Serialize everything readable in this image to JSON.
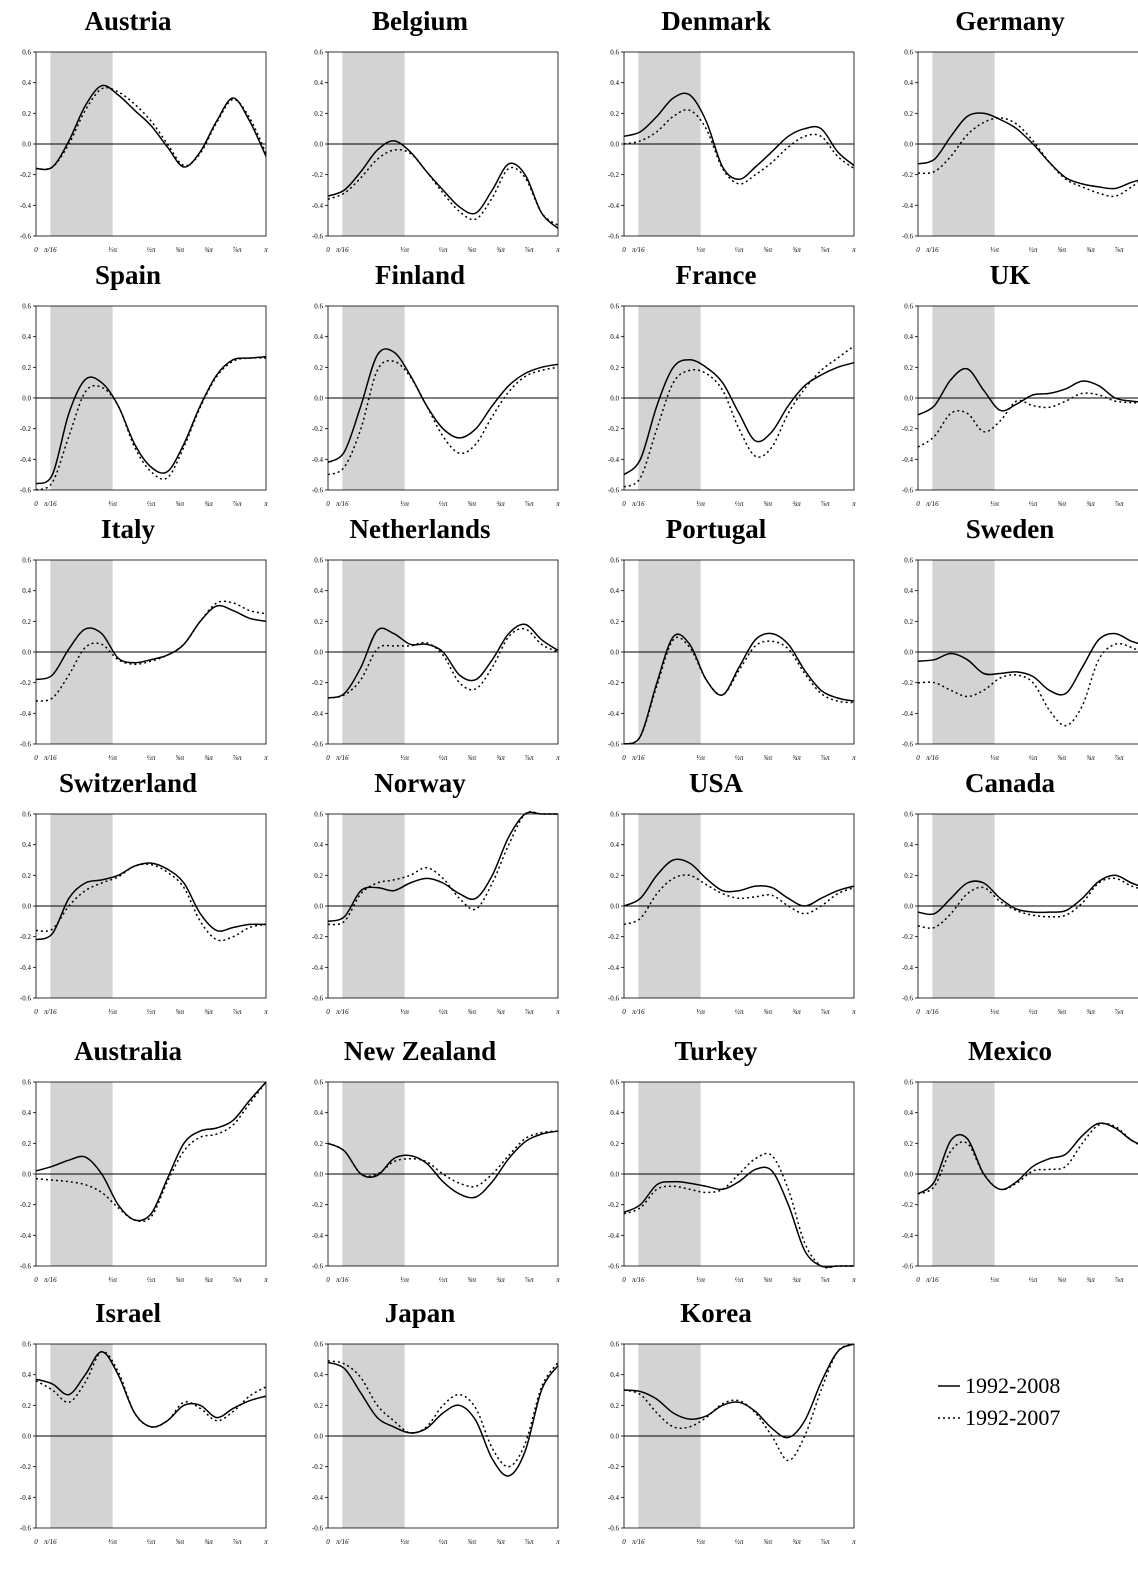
{
  "chart_data": {
    "type": "line",
    "ylim": [
      -0.6,
      0.6
    ],
    "yticks": [
      "0.6",
      "0.4",
      "0.2",
      "0.0",
      "-0.2",
      "-0.4",
      "-0.6"
    ],
    "x_tick_labels": [
      "0",
      "π/16",
      "⅓π",
      "½π",
      "⅝π",
      "¾π",
      "⅞π",
      "π"
    ],
    "series_style": {
      "1992-2008": "solid",
      "1992-2007": "dotted"
    },
    "legend": {
      "position": "bottom-right",
      "entries": [
        "1992-2008",
        "1992-2007"
      ]
    },
    "shaded_band": "π/16 to ⅓π",
    "panels": [
      {
        "title": "Austria",
        "s1": [
          -0.16,
          -0.15,
          0.02,
          0.25,
          0.38,
          0.32,
          0.22,
          0.12,
          -0.02,
          -0.15,
          -0.05,
          0.15,
          0.3,
          0.15,
          -0.08
        ],
        "s2": [
          -0.16,
          -0.15,
          0.0,
          0.22,
          0.36,
          0.34,
          0.26,
          0.15,
          0.0,
          -0.14,
          -0.06,
          0.14,
          0.29,
          0.17,
          -0.06
        ]
      },
      {
        "title": "Belgium",
        "s1": [
          -0.34,
          -0.3,
          -0.18,
          -0.04,
          0.02,
          -0.05,
          -0.18,
          -0.3,
          -0.41,
          -0.45,
          -0.3,
          -0.13,
          -0.2,
          -0.45,
          -0.55
        ],
        "s2": [
          -0.36,
          -0.32,
          -0.22,
          -0.1,
          -0.04,
          -0.06,
          -0.18,
          -0.32,
          -0.44,
          -0.49,
          -0.35,
          -0.16,
          -0.22,
          -0.45,
          -0.53
        ]
      },
      {
        "title": "Denmark",
        "s1": [
          0.05,
          0.08,
          0.18,
          0.3,
          0.32,
          0.15,
          -0.15,
          -0.23,
          -0.15,
          -0.05,
          0.05,
          0.1,
          0.1,
          -0.05,
          -0.14
        ],
        "s2": [
          0.0,
          0.02,
          0.08,
          0.18,
          0.22,
          0.1,
          -0.16,
          -0.26,
          -0.2,
          -0.12,
          -0.02,
          0.05,
          0.05,
          -0.08,
          -0.16
        ]
      },
      {
        "title": "Germany",
        "s1": [
          -0.13,
          -0.1,
          0.05,
          0.18,
          0.2,
          0.16,
          0.1,
          0.0,
          -0.12,
          -0.22,
          -0.26,
          -0.28,
          -0.29,
          -0.25,
          -0.22
        ],
        "s2": [
          -0.19,
          -0.18,
          -0.08,
          0.06,
          0.14,
          0.17,
          0.13,
          0.02,
          -0.12,
          -0.23,
          -0.28,
          -0.32,
          -0.34,
          -0.28,
          -0.2
        ]
      },
      {
        "title": "Spain",
        "s1": [
          -0.56,
          -0.5,
          -0.1,
          0.12,
          0.1,
          -0.05,
          -0.3,
          -0.45,
          -0.48,
          -0.3,
          -0.05,
          0.15,
          0.25,
          0.26,
          0.27
        ],
        "s2": [
          -0.62,
          -0.55,
          -0.25,
          0.04,
          0.07,
          -0.05,
          -0.32,
          -0.48,
          -0.52,
          -0.32,
          -0.06,
          0.14,
          0.24,
          0.26,
          0.26
        ]
      },
      {
        "title": "Finland",
        "s1": [
          -0.42,
          -0.35,
          -0.05,
          0.28,
          0.3,
          0.15,
          -0.05,
          -0.2,
          -0.26,
          -0.2,
          -0.05,
          0.08,
          0.16,
          0.2,
          0.22
        ],
        "s2": [
          -0.5,
          -0.45,
          -0.2,
          0.18,
          0.24,
          0.14,
          -0.05,
          -0.25,
          -0.36,
          -0.3,
          -0.12,
          0.04,
          0.14,
          0.18,
          0.2
        ]
      },
      {
        "title": "France",
        "s1": [
          -0.5,
          -0.4,
          -0.05,
          0.2,
          0.25,
          0.2,
          0.1,
          -0.1,
          -0.28,
          -0.22,
          -0.05,
          0.08,
          0.15,
          0.2,
          0.23
        ],
        "s2": [
          -0.58,
          -0.52,
          -0.2,
          0.1,
          0.18,
          0.16,
          0.05,
          -0.2,
          -0.38,
          -0.32,
          -0.1,
          0.06,
          0.18,
          0.26,
          0.34
        ]
      },
      {
        "title": "UK",
        "s1": [
          -0.11,
          -0.05,
          0.12,
          0.19,
          0.05,
          -0.08,
          -0.04,
          0.02,
          0.03,
          0.06,
          0.11,
          0.08,
          0.0,
          -0.02,
          -0.03
        ],
        "s2": [
          -0.32,
          -0.25,
          -0.1,
          -0.1,
          -0.22,
          -0.15,
          -0.02,
          -0.05,
          -0.06,
          -0.02,
          0.03,
          0.02,
          -0.02,
          -0.03,
          -0.03
        ]
      },
      {
        "title": "Italy",
        "s1": [
          -0.18,
          -0.15,
          0.02,
          0.15,
          0.12,
          -0.04,
          -0.07,
          -0.05,
          -0.02,
          0.05,
          0.2,
          0.3,
          0.27,
          0.22,
          0.2
        ],
        "s2": [
          -0.32,
          -0.3,
          -0.15,
          0.03,
          0.05,
          -0.05,
          -0.08,
          -0.06,
          -0.02,
          0.05,
          0.2,
          0.32,
          0.32,
          0.27,
          0.25
        ]
      },
      {
        "title": "Netherlands",
        "s1": [
          -0.3,
          -0.27,
          -0.1,
          0.14,
          0.12,
          0.05,
          0.05,
          0.0,
          -0.15,
          -0.18,
          -0.05,
          0.12,
          0.18,
          0.08,
          0.01
        ],
        "s2": [
          -0.3,
          -0.28,
          -0.18,
          0.02,
          0.04,
          0.04,
          0.06,
          -0.02,
          -0.2,
          -0.24,
          -0.1,
          0.1,
          0.15,
          0.05,
          0.0
        ]
      },
      {
        "title": "Portugal",
        "s1": [
          -0.65,
          -0.55,
          -0.2,
          0.1,
          0.05,
          -0.18,
          -0.28,
          -0.1,
          0.08,
          0.12,
          0.05,
          -0.12,
          -0.25,
          -0.3,
          -0.32
        ],
        "s2": [
          -0.65,
          -0.55,
          -0.22,
          0.08,
          0.03,
          -0.18,
          -0.28,
          -0.12,
          0.04,
          0.07,
          0.02,
          -0.14,
          -0.27,
          -0.32,
          -0.33
        ]
      },
      {
        "title": "Sweden",
        "s1": [
          -0.06,
          -0.05,
          -0.01,
          -0.05,
          -0.14,
          -0.14,
          -0.13,
          -0.16,
          -0.25,
          -0.27,
          -0.1,
          0.08,
          0.12,
          0.07,
          0.04
        ],
        "s2": [
          -0.2,
          -0.2,
          -0.25,
          -0.29,
          -0.25,
          -0.17,
          -0.15,
          -0.2,
          -0.38,
          -0.48,
          -0.35,
          -0.05,
          0.05,
          0.03,
          -0.03
        ]
      },
      {
        "title": "Switzerland",
        "s1": [
          -0.22,
          -0.18,
          0.05,
          0.15,
          0.17,
          0.2,
          0.26,
          0.28,
          0.24,
          0.15,
          -0.05,
          -0.16,
          -0.14,
          -0.12,
          -0.12
        ],
        "s2": [
          -0.16,
          -0.15,
          0.0,
          0.1,
          0.15,
          0.19,
          0.26,
          0.27,
          0.22,
          0.12,
          -0.1,
          -0.22,
          -0.2,
          -0.14,
          -0.12
        ]
      },
      {
        "title": "Norway",
        "s1": [
          -0.1,
          -0.07,
          0.1,
          0.12,
          0.1,
          0.15,
          0.18,
          0.15,
          0.08,
          0.05,
          0.2,
          0.45,
          0.62,
          0.7,
          0.72
        ],
        "s2": [
          -0.12,
          -0.1,
          0.08,
          0.15,
          0.17,
          0.2,
          0.25,
          0.18,
          0.05,
          -0.02,
          0.15,
          0.4,
          0.62,
          0.7,
          0.72
        ]
      },
      {
        "title": "USA",
        "s1": [
          0.0,
          0.05,
          0.2,
          0.3,
          0.28,
          0.18,
          0.1,
          0.1,
          0.13,
          0.12,
          0.05,
          0.0,
          0.05,
          0.1,
          0.13
        ],
        "s2": [
          -0.12,
          -0.08,
          0.08,
          0.18,
          0.2,
          0.14,
          0.08,
          0.05,
          0.06,
          0.07,
          0.0,
          -0.05,
          0.0,
          0.08,
          0.12
        ]
      },
      {
        "title": "Canada",
        "s1": [
          -0.04,
          -0.05,
          0.05,
          0.15,
          0.15,
          0.05,
          -0.02,
          -0.04,
          -0.04,
          -0.03,
          0.05,
          0.16,
          0.2,
          0.15,
          0.11
        ],
        "s2": [
          -0.13,
          -0.14,
          -0.05,
          0.08,
          0.12,
          0.03,
          -0.03,
          -0.06,
          -0.07,
          -0.06,
          0.02,
          0.15,
          0.18,
          0.13,
          0.1
        ]
      },
      {
        "title": "Australia",
        "s1": [
          0.02,
          0.05,
          0.09,
          0.11,
          0.0,
          -0.2,
          -0.3,
          -0.26,
          -0.03,
          0.2,
          0.28,
          0.3,
          0.35,
          0.48,
          0.62
        ],
        "s2": [
          -0.03,
          -0.04,
          -0.05,
          -0.07,
          -0.12,
          -0.22,
          -0.3,
          -0.28,
          -0.05,
          0.15,
          0.24,
          0.26,
          0.32,
          0.46,
          0.62
        ]
      },
      {
        "title": "New Zealand",
        "s1": [
          0.2,
          0.15,
          0.0,
          -0.01,
          0.1,
          0.12,
          0.07,
          -0.05,
          -0.13,
          -0.15,
          -0.05,
          0.1,
          0.21,
          0.26,
          0.28
        ],
        "s2": [
          0.2,
          0.15,
          0.0,
          0.0,
          0.08,
          0.1,
          0.08,
          0.0,
          -0.06,
          -0.08,
          0.0,
          0.12,
          0.23,
          0.27,
          0.28
        ]
      },
      {
        "title": "Turkey",
        "s1": [
          -0.25,
          -0.2,
          -0.07,
          -0.05,
          -0.06,
          -0.08,
          -0.1,
          -0.05,
          0.03,
          0.02,
          -0.2,
          -0.5,
          -0.6,
          -0.62,
          -0.62
        ],
        "s2": [
          -0.26,
          -0.22,
          -0.1,
          -0.08,
          -0.1,
          -0.12,
          -0.1,
          0.0,
          0.1,
          0.12,
          -0.1,
          -0.45,
          -0.6,
          -0.62,
          -0.62
        ]
      },
      {
        "title": "Mexico",
        "s1": [
          -0.13,
          -0.05,
          0.22,
          0.23,
          0.0,
          -0.1,
          -0.05,
          0.05,
          0.1,
          0.13,
          0.25,
          0.33,
          0.3,
          0.22,
          0.17
        ],
        "s2": [
          -0.13,
          -0.08,
          0.15,
          0.2,
          0.0,
          -0.1,
          -0.06,
          0.02,
          0.03,
          0.05,
          0.2,
          0.32,
          0.31,
          0.22,
          0.16
        ]
      },
      {
        "title": "Israel",
        "s1": [
          0.37,
          0.34,
          0.27,
          0.4,
          0.55,
          0.4,
          0.15,
          0.06,
          0.1,
          0.2,
          0.2,
          0.12,
          0.18,
          0.23,
          0.26
        ],
        "s2": [
          0.36,
          0.3,
          0.22,
          0.35,
          0.55,
          0.42,
          0.15,
          0.06,
          0.1,
          0.22,
          0.18,
          0.1,
          0.16,
          0.26,
          0.32
        ]
      },
      {
        "title": "Japan",
        "s1": [
          0.48,
          0.44,
          0.28,
          0.12,
          0.06,
          0.02,
          0.05,
          0.15,
          0.2,
          0.1,
          -0.15,
          -0.26,
          -0.1,
          0.3,
          0.46
        ],
        "s2": [
          0.49,
          0.47,
          0.38,
          0.2,
          0.1,
          0.02,
          0.06,
          0.2,
          0.27,
          0.18,
          -0.08,
          -0.2,
          -0.05,
          0.32,
          0.48
        ]
      },
      {
        "title": "Korea",
        "s1": [
          0.3,
          0.29,
          0.24,
          0.15,
          0.11,
          0.13,
          0.2,
          0.22,
          0.16,
          0.05,
          -0.01,
          0.1,
          0.35,
          0.55,
          0.6
        ],
        "s2": [
          0.3,
          0.27,
          0.15,
          0.06,
          0.06,
          0.12,
          0.21,
          0.23,
          0.15,
          0.0,
          -0.16,
          0.0,
          0.3,
          0.55,
          0.62
        ]
      }
    ]
  }
}
